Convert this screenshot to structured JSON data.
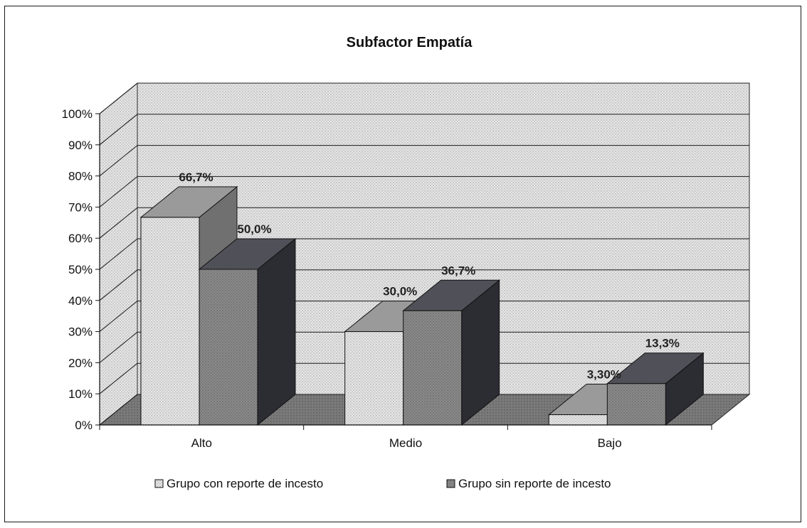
{
  "chart_data": {
    "type": "bar",
    "title": "Subfactor Empatía",
    "categories": [
      "Alto",
      "Medio",
      "Bajo"
    ],
    "series": [
      {
        "name": "Grupo con reporte de incesto",
        "values": [
          66.7,
          30.0,
          3.3
        ],
        "labels": [
          "66,7%",
          "30,0%",
          "3,30%"
        ],
        "color": "#d4d4d4"
      },
      {
        "name": "Grupo sin reporte de incesto",
        "values": [
          50.0,
          36.7,
          13.3
        ],
        "labels": [
          "50,0%",
          "36,7%",
          "13,3%"
        ],
        "color": "#4a4a52"
      }
    ],
    "ylim": [
      0,
      100
    ],
    "yticks": [
      "0%",
      "10%",
      "20%",
      "30%",
      "40%",
      "50%",
      "60%",
      "70%",
      "80%",
      "90%",
      "100%"
    ],
    "grid": true,
    "legend_position": "bottom",
    "style": "3d-clustered-column"
  }
}
